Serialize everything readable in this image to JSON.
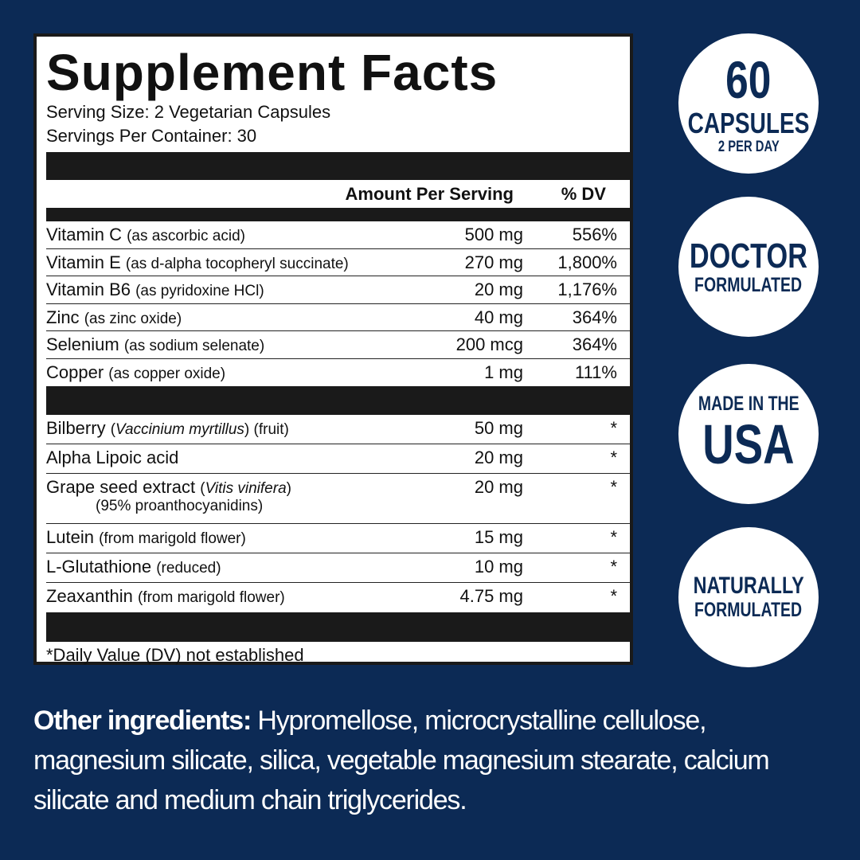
{
  "facts": {
    "title": "Supplement Facts",
    "serving_size": "Serving Size: 2 Vegetarian Capsules",
    "servings_per_container": "Servings Per Container: 30",
    "amount_header": "Amount Per Serving",
    "dv_header": "% DV",
    "vitamins": [
      {
        "name": "Vitamin C",
        "note": [
          {
            "text": "(as ascorbic acid)",
            "italic": false
          }
        ],
        "amount": "500 mg",
        "dv": "556%"
      },
      {
        "name": "Vitamin E",
        "note": [
          {
            "text": "(as d-alpha tocopheryl succinate)",
            "italic": false
          }
        ],
        "amount": "270 mg",
        "dv": "1,800%"
      },
      {
        "name": "Vitamin B6",
        "note": [
          {
            "text": "(as pyridoxine HCl)",
            "italic": false
          }
        ],
        "amount": "20 mg",
        "dv": "1,176%"
      },
      {
        "name": "Zinc",
        "note": [
          {
            "text": "(as zinc oxide)",
            "italic": false
          }
        ],
        "amount": "40 mg",
        "dv": "364%"
      },
      {
        "name": "Selenium",
        "note": [
          {
            "text": "(as sodium selenate)",
            "italic": false
          }
        ],
        "amount": "200 mcg",
        "dv": "364%"
      },
      {
        "name": "Copper",
        "note": [
          {
            "text": "(as copper oxide)",
            "italic": false
          }
        ],
        "amount": "1 mg",
        "dv": "111%"
      }
    ],
    "others": [
      {
        "name": "Bilberry",
        "note": [
          {
            "text": "(",
            "italic": false
          },
          {
            "text": "Vaccinium myrtillus",
            "italic": true
          },
          {
            "text": ") (fruit)",
            "italic": false
          }
        ],
        "amount": "50 mg",
        "dv": "*"
      },
      {
        "name": "Alpha Lipoic acid",
        "note": [],
        "amount": "20 mg",
        "dv": "*"
      },
      {
        "name": "Grape seed extract",
        "note": [
          {
            "text": "(",
            "italic": false
          },
          {
            "text": "Vitis vinifera",
            "italic": true
          },
          {
            "text": ")",
            "italic": false
          }
        ],
        "sub": "(95% proanthocyanidins)",
        "amount": "20 mg",
        "dv": "*"
      },
      {
        "name": "Lutein",
        "note": [
          {
            "text": "(from marigold flower)",
            "italic": false
          }
        ],
        "amount": "15 mg",
        "dv": "*"
      },
      {
        "name": "L-Glutathione",
        "note": [
          {
            "text": "(reduced)",
            "italic": false
          }
        ],
        "amount": "10 mg",
        "dv": "*"
      },
      {
        "name": "Zeaxanthin",
        "note": [
          {
            "text": "(from marigold flower)",
            "italic": false
          }
        ],
        "amount": "4.75 mg",
        "dv": "*"
      }
    ],
    "footnote": "*Daily Value (DV) not established"
  },
  "badges": [
    {
      "lines": [
        "60",
        "CAPSULES",
        "2 PER DAY"
      ]
    },
    {
      "lines": [
        "DOCTOR",
        "FORMULATED"
      ]
    },
    {
      "lines": [
        "MADE IN THE",
        "USA"
      ]
    },
    {
      "lines": [
        "NATURALLY",
        "FORMULATED"
      ]
    }
  ],
  "other_ingredients": {
    "label": "Other ingredients:",
    "text": "Hypromellose, microcrystalline cellulose, magnesium silicate, silica, vegetable magnesium stearate, calcium silicate and medium chain triglycerides."
  }
}
